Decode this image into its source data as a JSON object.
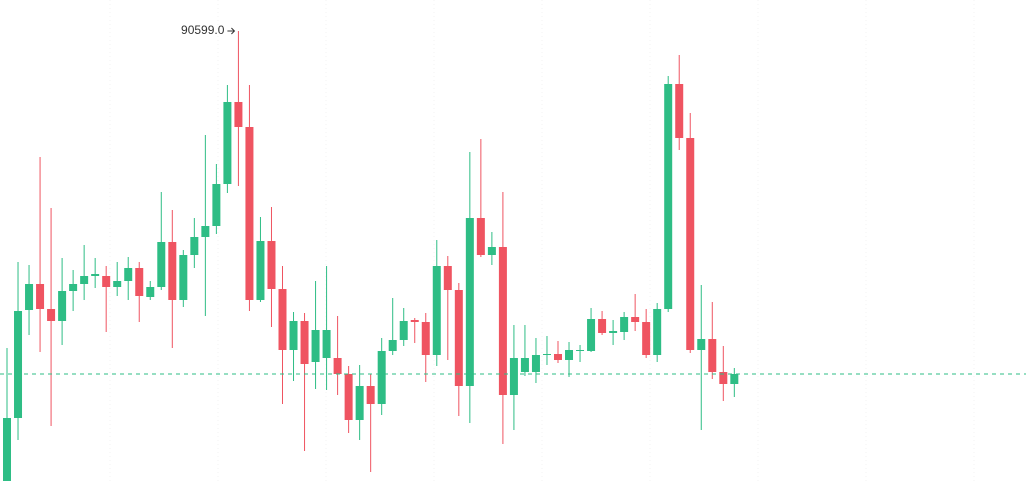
{
  "chart_data": {
    "type": "candlestick",
    "annotation": "90599.0",
    "up_color": "#2ebd85",
    "down_color": "#ef5461",
    "ylim": [
      90149,
      90630
    ],
    "price_line": 90256,
    "open": [
      90149,
      90212,
      90320,
      90346,
      90321,
      90309,
      90339,
      90346,
      90354,
      90354,
      90343,
      90349,
      90362,
      90333,
      90343,
      90388,
      90330,
      90375,
      90393,
      90404,
      90446,
      90528,
      90503,
      90330,
      90389,
      90341,
      90280,
      90309,
      90268,
      90272,
      90272,
      90256,
      90210,
      90244,
      90226,
      90279,
      90290,
      90310,
      90308,
      90275,
      90364,
      90340,
      90244,
      90412,
      90375,
      90383,
      90235,
      90258,
      90258,
      90275,
      90276,
      90270,
      90279,
      90279,
      90311,
      90297,
      90298,
      90313,
      90308,
      90275,
      90321,
      90546,
      90492,
      90280,
      90291,
      90258,
      90246
    ],
    "high": [
      90282,
      90368,
      90365,
      90473,
      90422,
      90372,
      90360,
      90385,
      90372,
      90364,
      90368,
      90373,
      90368,
      90349,
      90438,
      90420,
      90380,
      90412,
      90495,
      90466,
      90545,
      90599,
      90545,
      90413,
      90423,
      90364,
      90318,
      90317,
      90349,
      90364,
      90314,
      90264,
      90265,
      90256,
      90292,
      90332,
      90322,
      90312,
      90317,
      90390,
      90374,
      90347,
      90478,
      90491,
      90398,
      90438,
      90305,
      90305,
      90292,
      90294,
      90289,
      90288,
      90285,
      90322,
      90319,
      90310,
      90318,
      90336,
      90321,
      90327,
      90554,
      90575,
      90517,
      90345,
      90328,
      90284,
      90262
    ],
    "low": [
      90149,
      90190,
      90295,
      90278,
      90204,
      90285,
      90319,
      90330,
      90342,
      90298,
      90334,
      90330,
      90308,
      90330,
      90340,
      90282,
      90323,
      90362,
      90314,
      90396,
      90437,
      90444,
      90319,
      90328,
      90303,
      90226,
      90249,
      90179,
      90241,
      90240,
      90235,
      90197,
      90190,
      90158,
      90215,
      90275,
      90284,
      90287,
      90248,
      90264,
      90270,
      90214,
      90207,
      90373,
      90365,
      90186,
      90200,
      90254,
      90247,
      90265,
      90267,
      90253,
      90268,
      90278,
      90295,
      90285,
      90290,
      90299,
      90272,
      90268,
      90318,
      90480,
      90277,
      90200,
      90251,
      90229,
      90233
    ],
    "close": [
      90212,
      90319,
      90346,
      90321,
      90309,
      90339,
      90346,
      90354,
      90356,
      90343,
      90349,
      90362,
      90334,
      90343,
      90388,
      90330,
      90375,
      90393,
      90404,
      90446,
      90528,
      90503,
      90330,
      90389,
      90341,
      90280,
      90309,
      90266,
      90300,
      90300,
      90256,
      90210,
      90244,
      90226,
      90279,
      90290,
      90309,
      90308,
      90275,
      90364,
      90340,
      90244,
      90412,
      90375,
      90383,
      90235,
      90272,
      90272,
      90275,
      90276,
      90270,
      90280,
      90280,
      90311,
      90297,
      90299,
      90313,
      90308,
      90275,
      90321,
      90546,
      90492,
      90280,
      90291,
      90258,
      90246,
      90256
    ]
  }
}
